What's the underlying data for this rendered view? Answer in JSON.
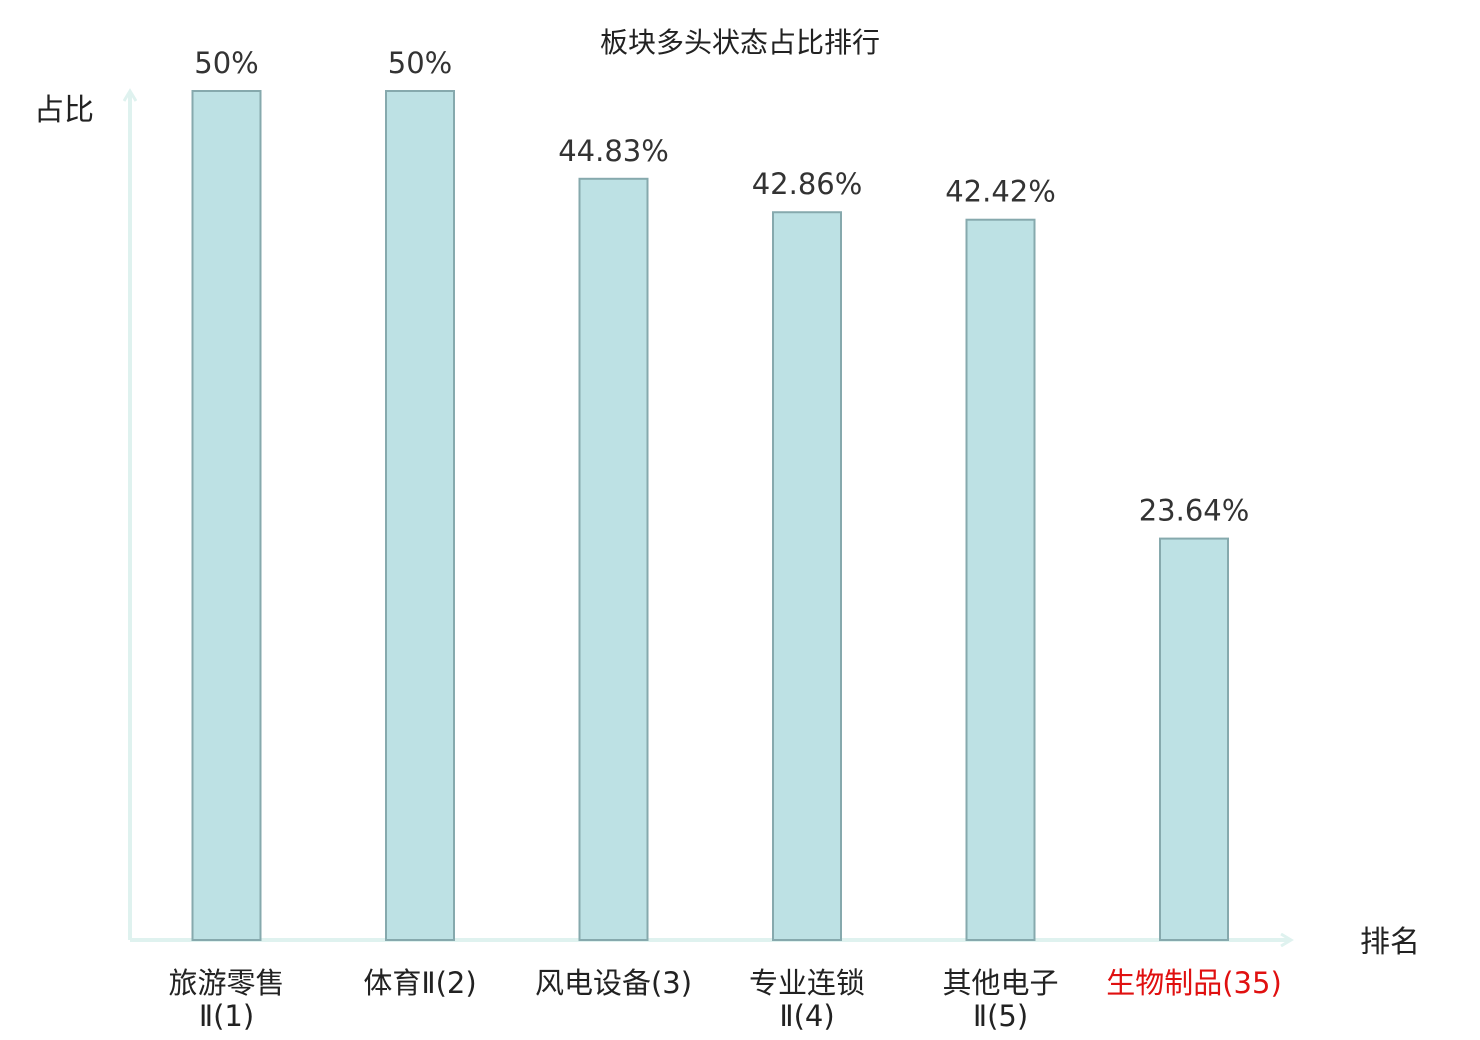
{
  "chart_data": {
    "type": "bar",
    "title": "板块多头状态占比排行",
    "xlabel": "排名",
    "ylabel": "占比",
    "ylim": [
      0,
      50
    ],
    "grid": false,
    "legend": "none",
    "categories": [
      {
        "lines": [
          "旅游零售",
          "Ⅱ(1)"
        ],
        "highlight": false
      },
      {
        "lines": [
          "体育Ⅱ(2)"
        ],
        "highlight": false
      },
      {
        "lines": [
          "风电设备(3)"
        ],
        "highlight": false
      },
      {
        "lines": [
          "专业连锁",
          "Ⅱ(4)"
        ],
        "highlight": false
      },
      {
        "lines": [
          "其他电子",
          "Ⅱ(5)"
        ],
        "highlight": false
      },
      {
        "lines": [
          "生物制品(35)"
        ],
        "highlight": true
      }
    ],
    "values": [
      50,
      50,
      44.83,
      42.86,
      42.42,
      23.64
    ],
    "value_labels": [
      "50%",
      "50%",
      "44.83%",
      "42.86%",
      "42.42%",
      "23.64%"
    ]
  },
  "colors": {
    "bar_fill": "#bde1e4",
    "bar_stroke": "#86a9ad",
    "axis": "#dff2ef",
    "highlight": "#e01010",
    "text": "#222222"
  }
}
